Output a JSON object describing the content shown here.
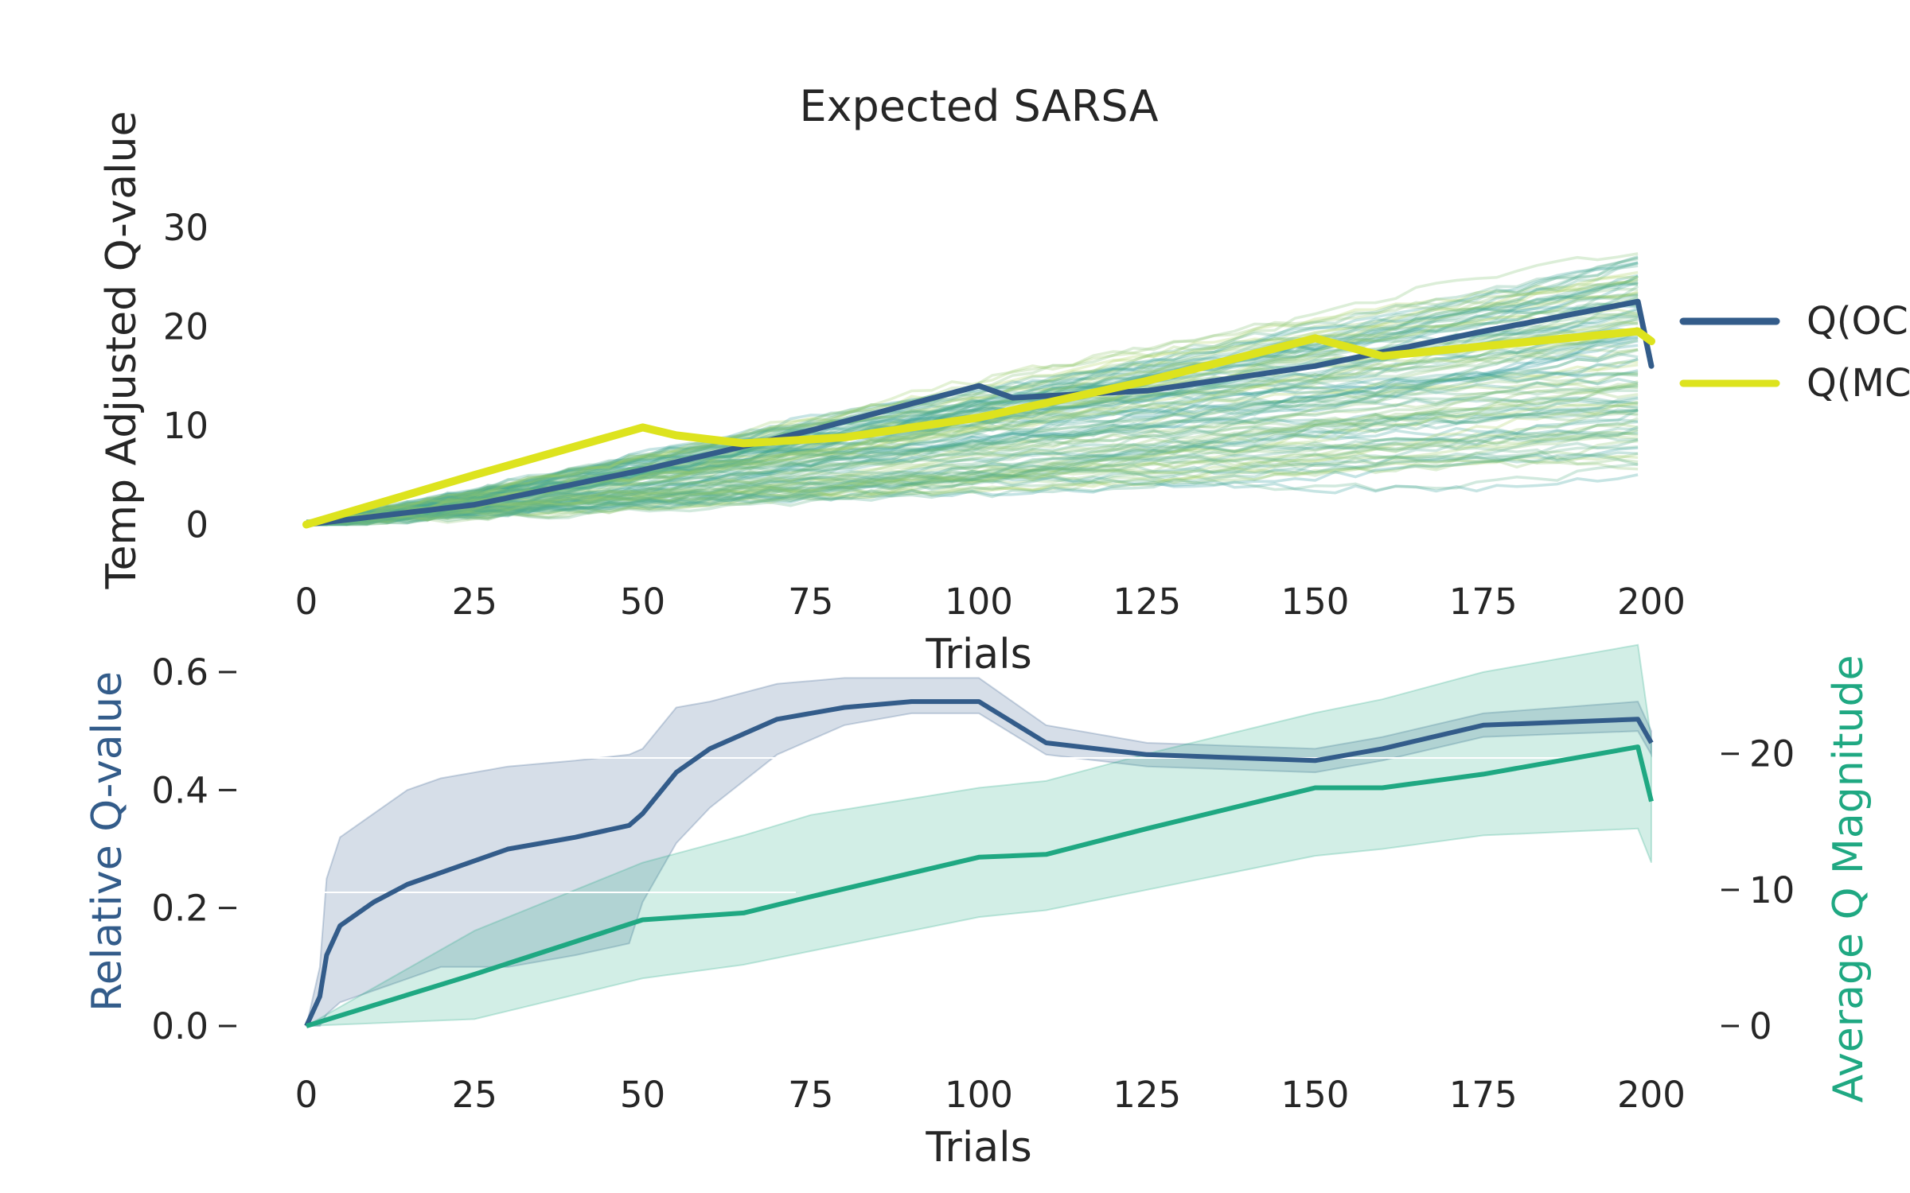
{
  "chart_data": [
    {
      "type": "line",
      "title": "Expected SARSA",
      "xlabel": "Trials",
      "ylabel": "Temp Adjusted Q-value",
      "xlim": [
        0,
        200
      ],
      "ylim": [
        -1,
        36
      ],
      "xticks": [
        0,
        25,
        50,
        75,
        100,
        125,
        150,
        175,
        200
      ],
      "yticks": [
        0,
        10,
        20,
        30
      ],
      "grid": false,
      "legend_position": "right",
      "colors": {
        "oc": "#335c8a",
        "mc": "#dde31e",
        "faint_low": "#2a9aa0",
        "faint_high": "#b0d55c"
      },
      "series": [
        {
          "name": "Q(OC",
          "x": [
            0,
            25,
            50,
            75,
            100,
            105,
            125,
            150,
            175,
            198,
            200
          ],
          "values": [
            0,
            2,
            5.5,
            9.5,
            14,
            12.8,
            13.5,
            16,
            19.5,
            22.5,
            16
          ]
        },
        {
          "name": "Q(MC",
          "x": [
            0,
            25,
            50,
            55,
            65,
            80,
            100,
            125,
            150,
            160,
            175,
            198,
            200
          ],
          "values": [
            0,
            5,
            9.8,
            9,
            8.2,
            8.8,
            10.8,
            14.5,
            18.8,
            17,
            18,
            19.5,
            18.5
          ]
        }
      ],
      "background_runs": 120
    },
    {
      "type": "line",
      "xlabel": "Trials",
      "ylabel_left": "Relative Q-value",
      "ylabel_right": "Average Q Magnitude",
      "xlim": [
        0,
        200
      ],
      "ylim_left": [
        0,
        0.6
      ],
      "ylim_right": [
        0,
        26
      ],
      "xticks": [
        0,
        25,
        50,
        75,
        100,
        125,
        150,
        175,
        200
      ],
      "yticks_left": [
        0.0,
        0.2,
        0.4,
        0.6
      ],
      "yticks_right": [
        0,
        10,
        20
      ],
      "grid": false,
      "colors": {
        "relative": "#335c8a",
        "magnitude": "#1fa882"
      },
      "series": [
        {
          "axis": "left",
          "x": [
            0,
            2,
            3,
            5,
            10,
            15,
            20,
            25,
            30,
            40,
            48,
            50,
            55,
            60,
            70,
            80,
            90,
            100,
            110,
            125,
            150,
            160,
            175,
            198,
            200
          ],
          "values": [
            0,
            0.05,
            0.12,
            0.17,
            0.21,
            0.24,
            0.26,
            0.28,
            0.3,
            0.32,
            0.34,
            0.36,
            0.43,
            0.47,
            0.52,
            0.54,
            0.55,
            0.55,
            0.48,
            0.46,
            0.45,
            0.47,
            0.51,
            0.52,
            0.48
          ],
          "band_lower": [
            0,
            0,
            0.02,
            0.04,
            0.06,
            0.08,
            0.1,
            0.1,
            0.1,
            0.12,
            0.14,
            0.21,
            0.31,
            0.37,
            0.46,
            0.51,
            0.53,
            0.53,
            0.46,
            0.44,
            0.43,
            0.45,
            0.49,
            0.5,
            0.46
          ],
          "band_upper": [
            0,
            0.1,
            0.25,
            0.32,
            0.36,
            0.4,
            0.42,
            0.43,
            0.44,
            0.45,
            0.46,
            0.47,
            0.54,
            0.55,
            0.58,
            0.59,
            0.59,
            0.59,
            0.51,
            0.48,
            0.47,
            0.49,
            0.53,
            0.55,
            0.5
          ]
        },
        {
          "axis": "right",
          "x": [
            0,
            25,
            50,
            65,
            75,
            100,
            110,
            125,
            150,
            160,
            175,
            198,
            200
          ],
          "values": [
            0,
            3.8,
            7.8,
            8.3,
            9.5,
            12.4,
            12.6,
            14.5,
            17.5,
            17.5,
            18.5,
            20.5,
            16.5
          ],
          "band_lower": [
            0,
            0.5,
            3.5,
            4.5,
            5.5,
            8,
            8.5,
            10,
            12.5,
            13,
            14,
            14.5,
            12
          ],
          "band_upper": [
            0,
            7,
            12,
            14,
            15.5,
            17.5,
            18,
            20,
            23,
            24,
            26,
            28,
            21
          ]
        }
      ]
    }
  ]
}
